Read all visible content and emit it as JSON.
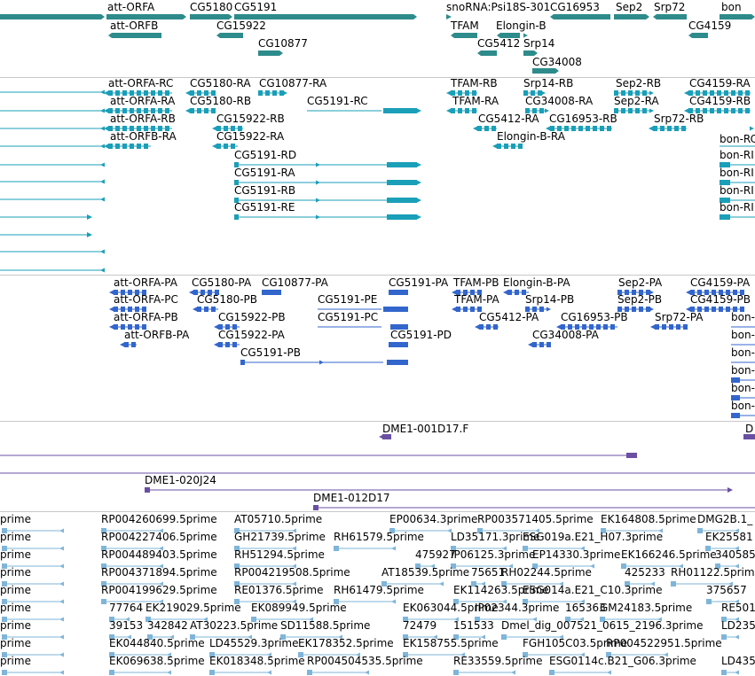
{
  "colors": {
    "gene": "#2e8b8b",
    "mrna": "#1a9fb8",
    "cds": "#3366cc",
    "clone": "#6a4fa3",
    "est": "#7fb5d9",
    "separator": "#c8c8c8"
  },
  "tracks": {
    "genes": {
      "labels": [
        "att-ORFA",
        "CG5180",
        "CG5191",
        "att-ORFB",
        "CG15922",
        "CG10877",
        "snoRNA:Psi18S-301",
        "CG16953",
        "Sep2",
        "Srp72",
        "bon",
        "TFAM",
        "Elongin-B",
        "CG5412",
        "Srp14",
        "CG34008",
        "CG4159"
      ]
    },
    "transcripts": {
      "labels": [
        "att-ORFA-RC",
        "CG5180-RA",
        "CG10877-RA",
        "att-ORFA-RA",
        "CG5180-RB",
        "CG5191-RC",
        "att-ORFA-RB",
        "CG15922-RB",
        "att-ORFB-RA",
        "CG15922-RA",
        "CG5191-RD",
        "CG5191-RA",
        "CG5191-RB",
        "CG5191-RE",
        "TFAM-RB",
        "Srp14-RB",
        "Sep2-RB",
        "CG4159-RA",
        "TFAM-RA",
        "CG34008-RA",
        "Sep2-RA",
        "CG4159-RB",
        "CG5412-RA",
        "CG16953-RB",
        "Srp72-RB",
        "Elongin-B-RA",
        "bon-RC",
        "bon-RI",
        "bon-RI",
        "bon-RI",
        "bon-RI"
      ]
    },
    "proteins": {
      "labels": [
        "att-ORFA-PA",
        "CG5180-PA",
        "CG10877-PA",
        "att-ORFA-PC",
        "CG5180-PB",
        "CG5191-PE",
        "att-ORFA-PB",
        "CG15922-PB",
        "CG5191-PC",
        "att-ORFB-PA",
        "CG15922-PA",
        "CG5191-PD",
        "CG5191-PB",
        "CG5191-PA",
        "TFAM-PB",
        "Elongin-B-PA",
        "TFAM-PA",
        "Srp14-PB",
        "CG5412-PA",
        "CG16953-PB",
        "CG34008-PA",
        "Sep2-PA",
        "CG4159-PA",
        "Sep2-PB",
        "CG4159-PB",
        "Srp72-PA",
        "bon-",
        "bon-",
        "bon-",
        "bon-",
        "bon-",
        "bon-"
      ]
    },
    "clones": {
      "labels": [
        "DME1-001D17.F",
        "D",
        "DME1-020J24",
        "DME1-012D17"
      ]
    },
    "ests": {
      "rows": [
        [
          "prime",
          "RP004260699.5prime",
          "AT05710.5prime",
          "EP00634.3prime",
          "RP003571405.5prime",
          "EK164808.5prime",
          "DMG2B.1_"
        ],
        [
          "prime",
          "RP004227406.5prime",
          "GH21739.5prime",
          "RH61579.5prime",
          "LD35171.3prime",
          "ESG019a.E21_H07.3prime",
          "EK25581"
        ],
        [
          "prime",
          "RP004489403.5prime",
          "RH51294.5prime",
          "475927",
          "IP06125.3prime",
          "EP14330.3prime",
          "EK166246.5prime",
          "340585"
        ],
        [
          "prime",
          "RP004371894.5prime",
          "RP004219508.5prime",
          "AT18539.5prime",
          "75651",
          "RH02244.5prime",
          "425233",
          "RH01122.5prime"
        ],
        [
          "prime",
          "RP004199629.5prime",
          "RE01376.5prime",
          "RH61479.5prime",
          "EK114263.5prime",
          "ESG014a.E21_C10.3prime",
          "375657"
        ],
        [
          "prime",
          "77764",
          "EK219029.5prime",
          "EK089949.5prime",
          "EK063044.5prime",
          "IP02344.3prime",
          "165363",
          "GM24183.5prime",
          "RE501"
        ],
        [
          "prime",
          "39153",
          "342842",
          "AT30223.5prime",
          "SD11588.5prime",
          "72479",
          "151533",
          "Dmel_dig_007521_0615_2196.3prime",
          "LD235"
        ],
        [
          "prime",
          "EK044840.5prime",
          "LD45529.3prime",
          "EK178352.5prime",
          "EK158755.5prime",
          "FGH105C03.5prime",
          "RP004522951.5prime"
        ],
        [
          "prime",
          "EK069638.5prime",
          "EK018348.5prime",
          "RP004504535.5prime",
          "RE33559.5prime",
          "ESG0114c.B21_G06.3prime",
          "LD435"
        ]
      ]
    }
  }
}
